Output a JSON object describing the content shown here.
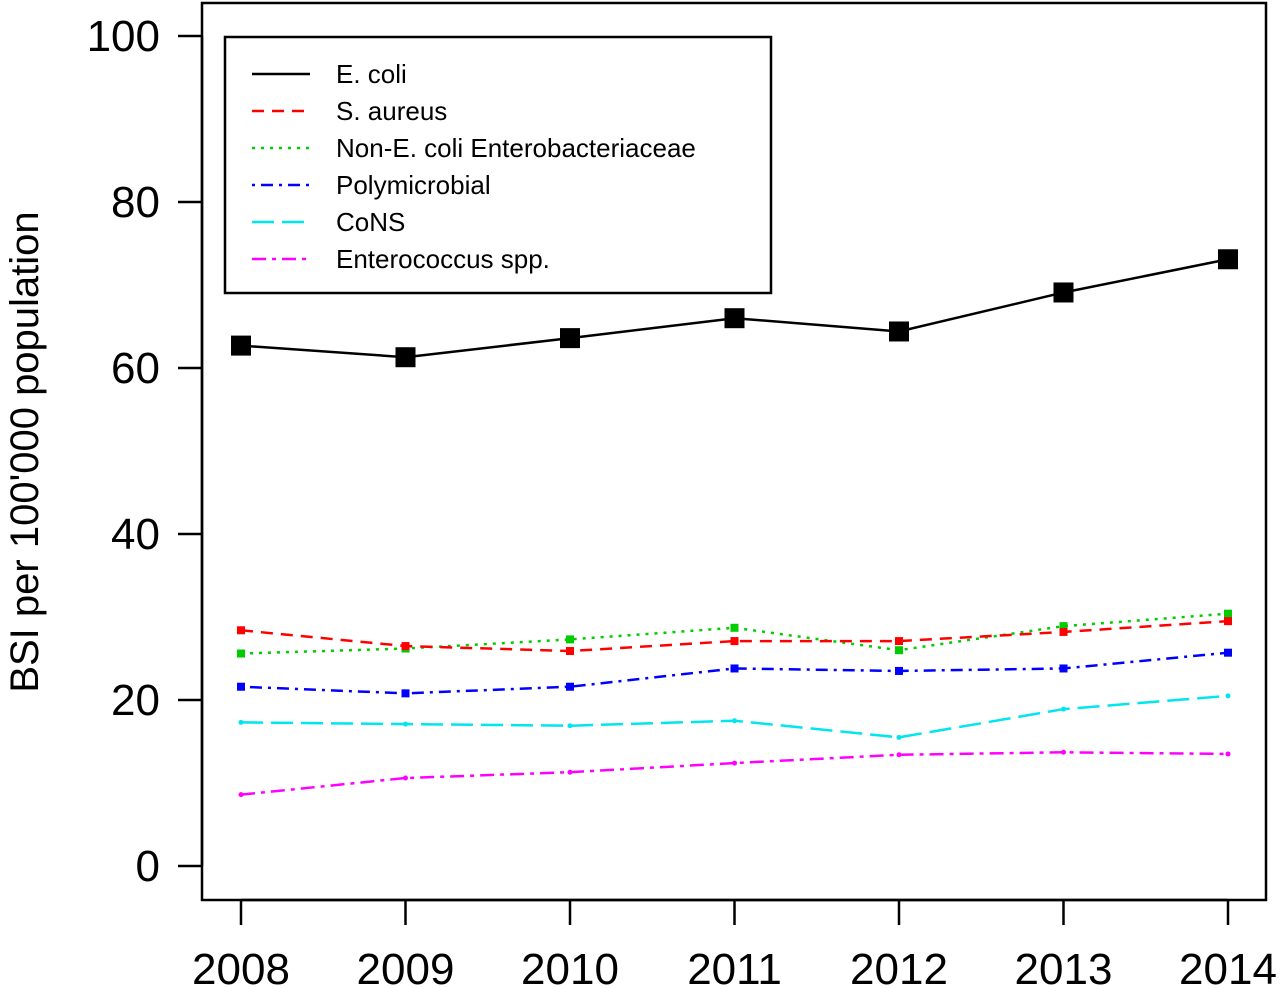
{
  "chart_data": {
    "type": "line",
    "title": "",
    "xlabel": "",
    "ylabel": "BSI per 100'000 population",
    "x": [
      2008,
      2009,
      2010,
      2011,
      2012,
      2013,
      2014
    ],
    "ylim": [
      0,
      100
    ],
    "y_ticks": [
      0,
      20,
      40,
      60,
      80,
      100
    ],
    "grid": false,
    "legend_position": "top-left",
    "series": [
      {
        "name": "E. coli",
        "color": "#000000",
        "dash": "solid",
        "marker": "square-large",
        "values": [
          62.7,
          61.3,
          63.6,
          66.0,
          64.4,
          69.1,
          73.1
        ]
      },
      {
        "name": "S. aureus",
        "color": "#ff0000",
        "dash": "dashed",
        "marker": "square-small",
        "values": [
          28.4,
          26.5,
          25.9,
          27.1,
          27.1,
          28.2,
          29.5
        ]
      },
      {
        "name": "Non-E. coli Enterobacteriaceae",
        "color": "#00cc00",
        "dash": "dotted",
        "marker": "square-small",
        "values": [
          25.6,
          26.2,
          27.3,
          28.7,
          26.0,
          28.9,
          30.4
        ]
      },
      {
        "name": "Polymicrobial",
        "color": "#0000ff",
        "dash": "dotdash",
        "marker": "square-small",
        "values": [
          21.6,
          20.8,
          21.6,
          23.8,
          23.5,
          23.8,
          25.7
        ]
      },
      {
        "name": "CoNS",
        "color": "#00e5ee",
        "dash": "longdash",
        "marker": "cross",
        "values": [
          17.3,
          17.1,
          16.9,
          17.5,
          15.5,
          18.9,
          20.5
        ]
      },
      {
        "name": "Enterococcus spp.",
        "color": "#ff00ff",
        "dash": "twodash",
        "marker": "cross",
        "values": [
          8.6,
          10.6,
          11.3,
          12.4,
          13.4,
          13.7,
          13.5
        ]
      }
    ]
  }
}
